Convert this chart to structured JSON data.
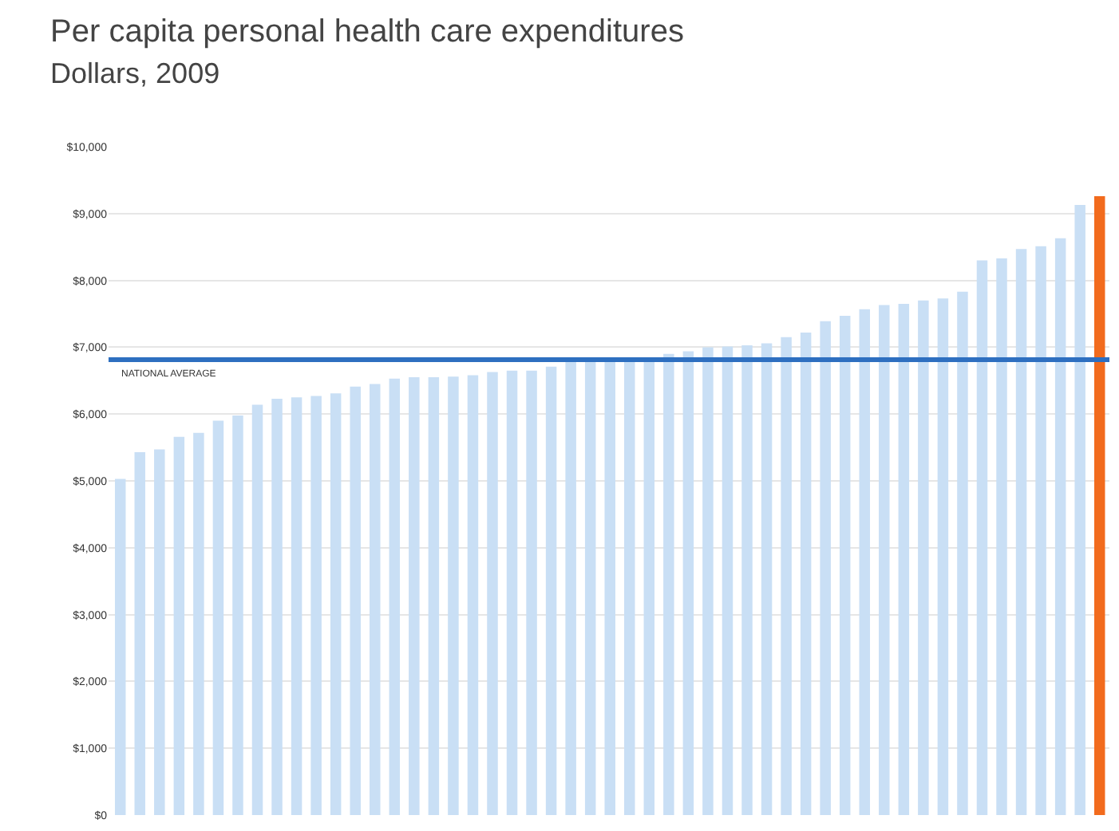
{
  "chart_data": {
    "type": "bar",
    "title": "Per capita personal health care expenditures",
    "subtitle": "Dollars, 2009",
    "categories": [
      null,
      null,
      null,
      null,
      null,
      null,
      null,
      null,
      null,
      null,
      null,
      null,
      null,
      null,
      null,
      null,
      null,
      null,
      null,
      null,
      null,
      null,
      null,
      null,
      null,
      null,
      null,
      null,
      null,
      null,
      null,
      null,
      null,
      null,
      null,
      null,
      null,
      null,
      null,
      null,
      null,
      null,
      null,
      null,
      null,
      null,
      null,
      null,
      null,
      null,
      null
    ],
    "values": [
      5030,
      5430,
      5470,
      5660,
      5720,
      5900,
      5980,
      6140,
      6230,
      6250,
      6270,
      6310,
      6410,
      6450,
      6530,
      6550,
      6550,
      6560,
      6580,
      6630,
      6650,
      6650,
      6710,
      6780,
      6790,
      6790,
      6800,
      6820,
      6900,
      6940,
      7000,
      7010,
      7030,
      7060,
      7150,
      7220,
      7390,
      7470,
      7570,
      7630,
      7650,
      7700,
      7730,
      7830,
      8300,
      8330,
      8470,
      8510,
      8630,
      9130,
      9260
    ],
    "colors": [
      "#c9dff5",
      "#c9dff5",
      "#c9dff5",
      "#c9dff5",
      "#c9dff5",
      "#c9dff5",
      "#c9dff5",
      "#c9dff5",
      "#c9dff5",
      "#c9dff5",
      "#c9dff5",
      "#c9dff5",
      "#c9dff5",
      "#c9dff5",
      "#c9dff5",
      "#c9dff5",
      "#c9dff5",
      "#c9dff5",
      "#c9dff5",
      "#c9dff5",
      "#c9dff5",
      "#c9dff5",
      "#c9dff5",
      "#c9dff5",
      "#c9dff5",
      "#c9dff5",
      "#c9dff5",
      "#c9dff5",
      "#c9dff5",
      "#c9dff5",
      "#c9dff5",
      "#c9dff5",
      "#c9dff5",
      "#c9dff5",
      "#c9dff5",
      "#c9dff5",
      "#c9dff5",
      "#c9dff5",
      "#c9dff5",
      "#c9dff5",
      "#c9dff5",
      "#c9dff5",
      "#c9dff5",
      "#c9dff5",
      "#c9dff5",
      "#c9dff5",
      "#c9dff5",
      "#c9dff5",
      "#c9dff5",
      "#c9dff5",
      "#f26b1d"
    ],
    "ylim": [
      0,
      10000
    ],
    "yticks": [
      {
        "value": 0,
        "label": "$0"
      },
      {
        "value": 1000,
        "label": "$1,000"
      },
      {
        "value": 2000,
        "label": "$2,000"
      },
      {
        "value": 3000,
        "label": "$3,000"
      },
      {
        "value": 4000,
        "label": "$4,000"
      },
      {
        "value": 5000,
        "label": "$5,000"
      },
      {
        "value": 6000,
        "label": "$6,000"
      },
      {
        "value": 7000,
        "label": "$7,000"
      },
      {
        "value": 8000,
        "label": "$8,000"
      },
      {
        "value": 9000,
        "label": "$9,000"
      },
      {
        "value": 10000,
        "label": "$10,000"
      }
    ],
    "grid": "y",
    "tick_labels": "y",
    "ref_lines": [
      {
        "axis": "y",
        "value": 6815,
        "label": "NATIONAL AVERAGE",
        "color": "#2e6fc0"
      }
    ]
  }
}
